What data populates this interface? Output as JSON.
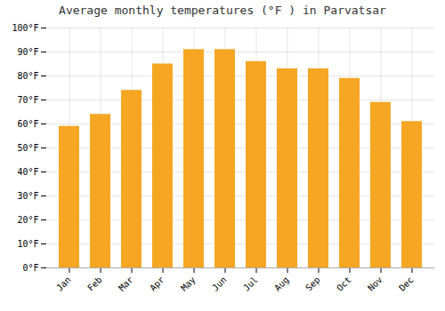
{
  "chart_data": {
    "type": "bar",
    "title": "Average monthly temperatures (°F ) in Parvatsar",
    "categories": [
      "Jan",
      "Feb",
      "Mar",
      "Apr",
      "May",
      "Jun",
      "Jul",
      "Aug",
      "Sep",
      "Oct",
      "Nov",
      "Dec"
    ],
    "values": [
      59,
      64,
      74,
      85,
      91,
      91,
      86,
      83,
      83,
      79,
      69,
      61
    ],
    "color": "#F5A623",
    "ylim": [
      0,
      100
    ],
    "yticks": [
      {
        "value": 0,
        "label": "0°F"
      },
      {
        "value": 10,
        "label": "10°F"
      },
      {
        "value": 20,
        "label": "20°F"
      },
      {
        "value": 30,
        "label": "30°F"
      },
      {
        "value": 40,
        "label": "40°F"
      },
      {
        "value": 50,
        "label": "50°F"
      },
      {
        "value": 60,
        "label": "60°F"
      },
      {
        "value": 70,
        "label": "70°F"
      },
      {
        "value": 80,
        "label": "80°F"
      },
      {
        "value": 90,
        "label": "90°F"
      },
      {
        "value": 100,
        "label": "100°F"
      }
    ],
    "grid": true
  }
}
